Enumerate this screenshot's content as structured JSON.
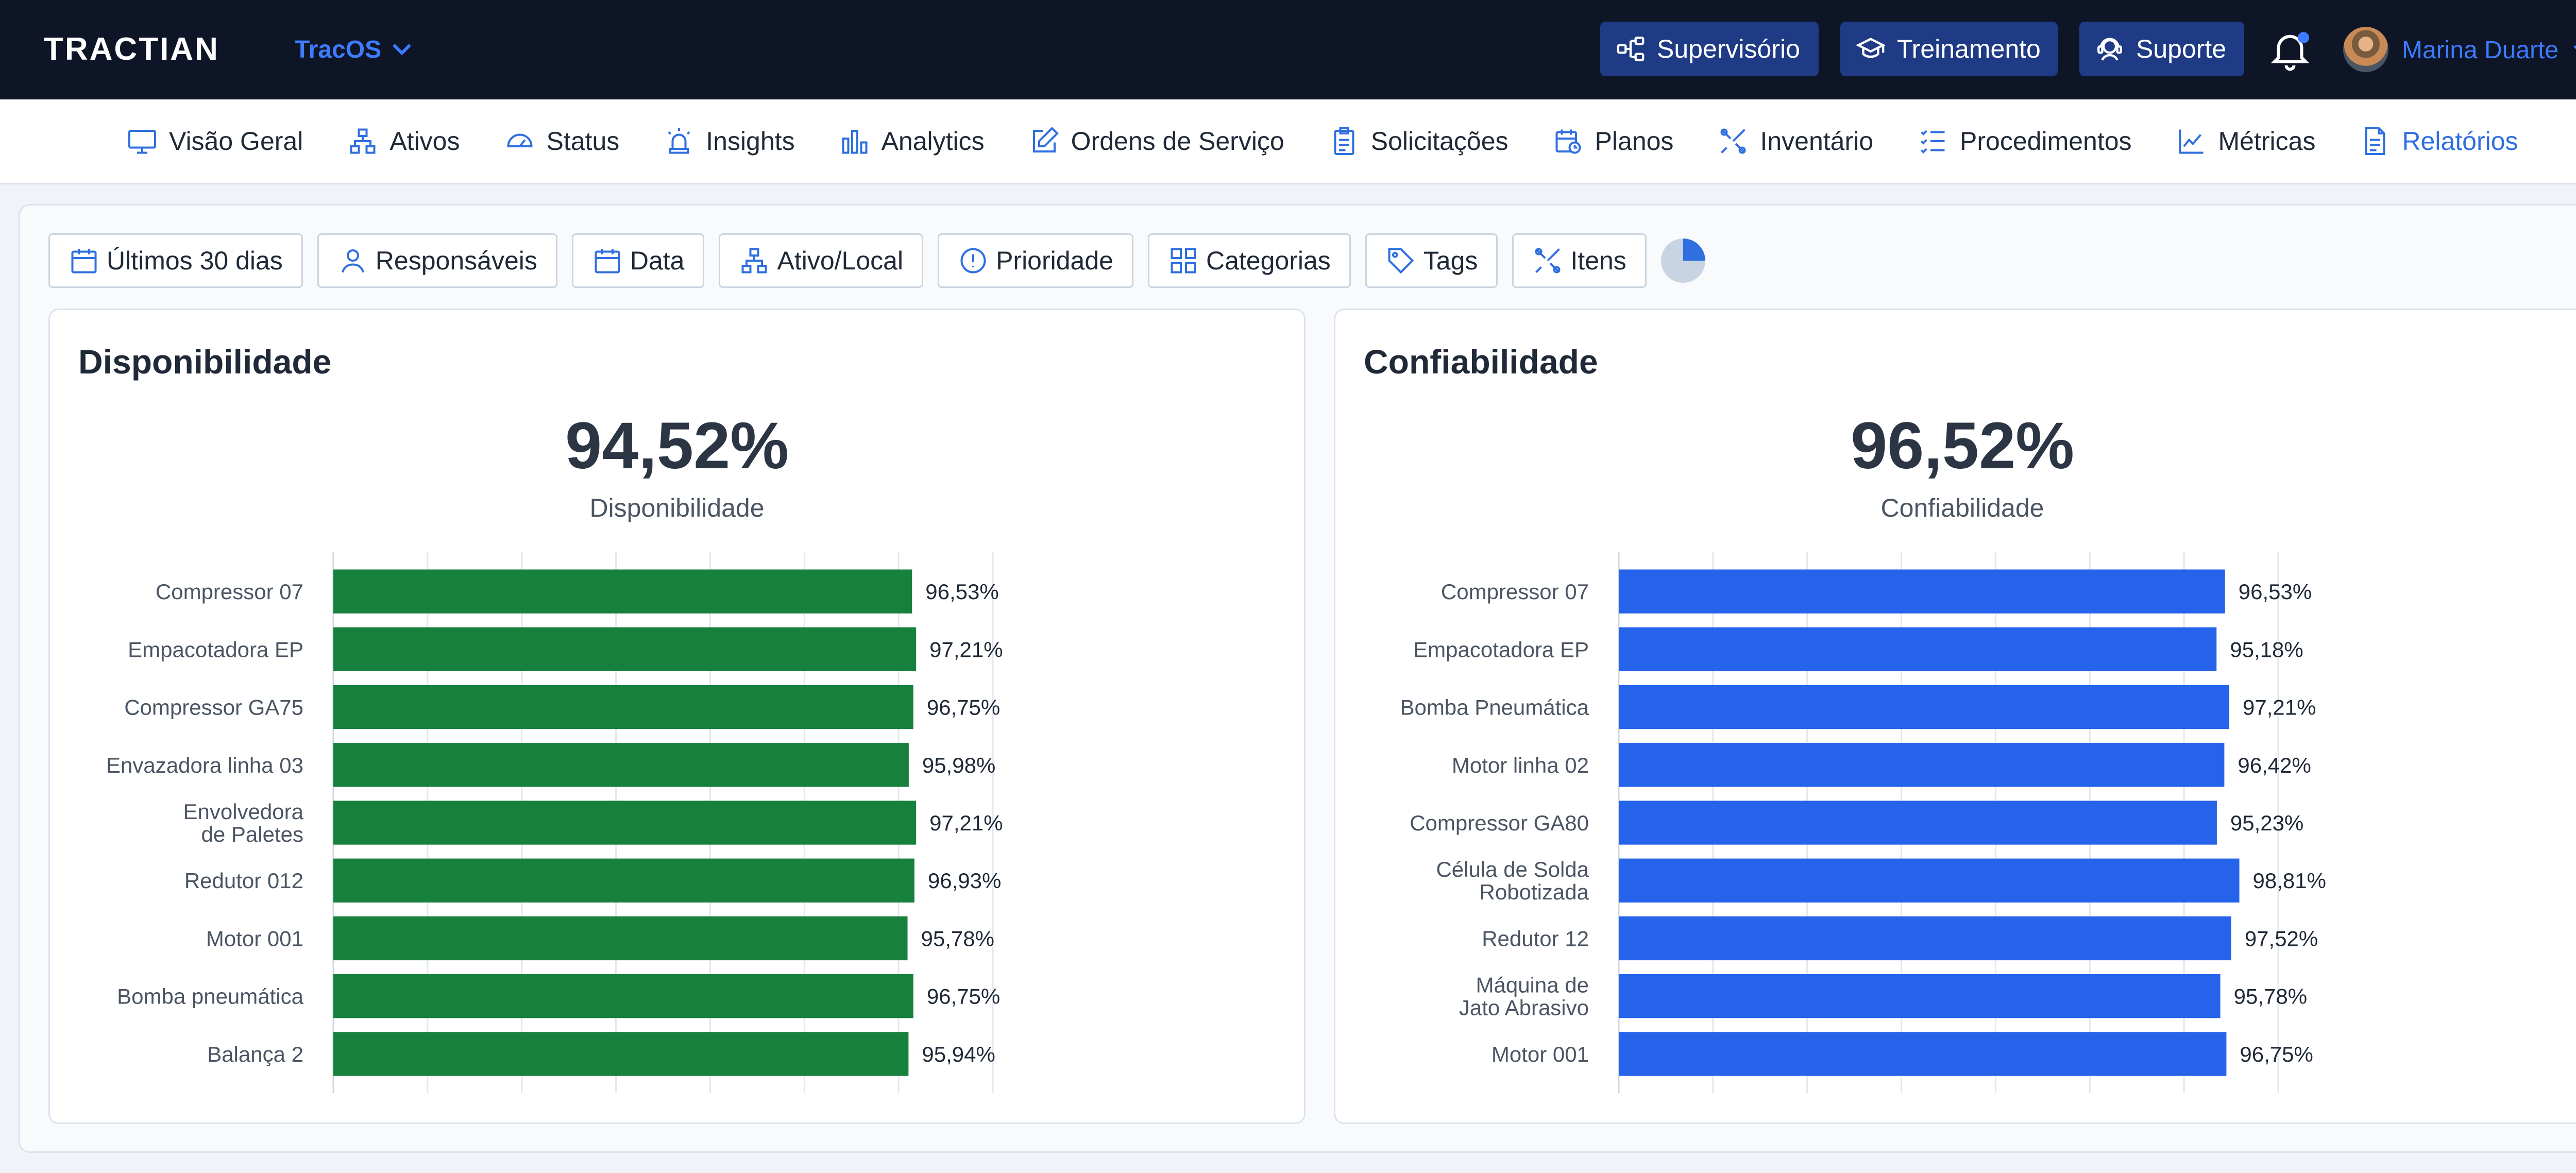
{
  "app": {
    "logo": "TRACTIAN",
    "workspace": "TracOS",
    "top_buttons": [
      "Supervisório",
      "Treinamento",
      "Suporte"
    ],
    "user_name": "Marina Duarte"
  },
  "nav": {
    "items": [
      "Visão Geral",
      "Ativos",
      "Status",
      "Insights",
      "Analytics",
      "Ordens de Serviço",
      "Solicitações",
      "Planos",
      "Inventário",
      "Procedimentos",
      "Métricas",
      "Relatórios"
    ],
    "active": "Relatórios"
  },
  "filters": [
    "Últimos 30 dias",
    "Responsáveis",
    "Data",
    "Ativo/Local",
    "Prioridade",
    "Categorias",
    "Tags",
    "Itens"
  ],
  "cards": {
    "availability": {
      "title": "Disponibilidade",
      "kpi_value": "94,52%",
      "kpi_label": "Disponibilidade"
    },
    "reliability": {
      "title": "Confiabilidade",
      "kpi_value": "96,52%",
      "kpi_label": "Confiabilidade"
    }
  },
  "colors": {
    "availability_bar": "#17803d",
    "reliability_bar": "#2563eb",
    "nav_active": "#2f6fe0",
    "topbar": "#0d1526"
  },
  "chart_data": [
    {
      "type": "bar",
      "orientation": "horizontal",
      "categories": [
        "Compressor 07",
        "Empacotadora EP",
        "Compressor GA75",
        "Envazadora linha 03",
        "Envolvedora de Paletes",
        "Redutor 012",
        "Motor 001",
        "Bomba pneumática",
        "Balança 2"
      ],
      "values": [
        96.53,
        97.21,
        96.75,
        95.98,
        97.21,
        96.93,
        95.78,
        96.75,
        95.94
      ],
      "data_labels": [
        "96,53%",
        "97,21%",
        "96,75%",
        "95,98%",
        "97,21%",
        "96,93%",
        "95,78%",
        "96,75%",
        "95,94%"
      ],
      "xlim": [
        0,
        110
      ],
      "grid": true
    },
    {
      "type": "bar",
      "orientation": "horizontal",
      "categories": [
        "Compressor 07",
        "Empacotadora EP",
        "Bomba Pneumática",
        "Motor linha 02",
        "Compressor GA80",
        "Célula de Solda Robotizada",
        "Redutor 12",
        "Máquina de Jato Abrasivo",
        "Motor 001"
      ],
      "values": [
        96.53,
        95.18,
        97.21,
        96.42,
        95.23,
        98.81,
        97.52,
        95.78,
        96.75
      ],
      "data_labels": [
        "96,53%",
        "95,18%",
        "97,21%",
        "96,42%",
        "95,23%",
        "98,81%",
        "97,52%",
        "95,78%",
        "96,75%"
      ],
      "xlim": [
        0,
        105
      ],
      "grid": true
    }
  ]
}
